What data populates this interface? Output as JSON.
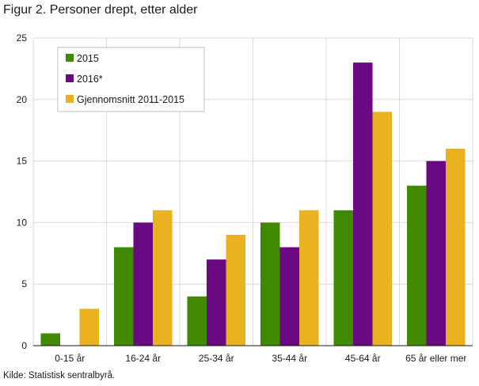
{
  "figure": {
    "title": "Figur 2. Personer drept, etter alder",
    "source": "Kilde: Statistisk sentralbyrå."
  },
  "chart_data": {
    "type": "bar",
    "title": "Figur 2. Personer drept, etter alder",
    "xlabel": "",
    "ylabel": "",
    "categories": [
      "0-15 år",
      "16-24 år",
      "25-34 år",
      "35-44 år",
      "45-64 år",
      "65 år eller mer"
    ],
    "series": [
      {
        "name": "2015",
        "color": "#3f8a00",
        "values": [
          1,
          8,
          4,
          10,
          11,
          13
        ]
      },
      {
        "name": "2016*",
        "color": "#6a0a82",
        "values": [
          0,
          10,
          7,
          8,
          23,
          15
        ]
      },
      {
        "name": "Gjennomsnitt 2011-2015",
        "color": "#eab221",
        "values": [
          3,
          11,
          9,
          11,
          19,
          16
        ]
      }
    ],
    "ylim": [
      0,
      25
    ],
    "yticks": [
      0,
      5,
      10,
      15,
      20,
      25
    ],
    "grid": true,
    "legend_position": "top-left"
  }
}
